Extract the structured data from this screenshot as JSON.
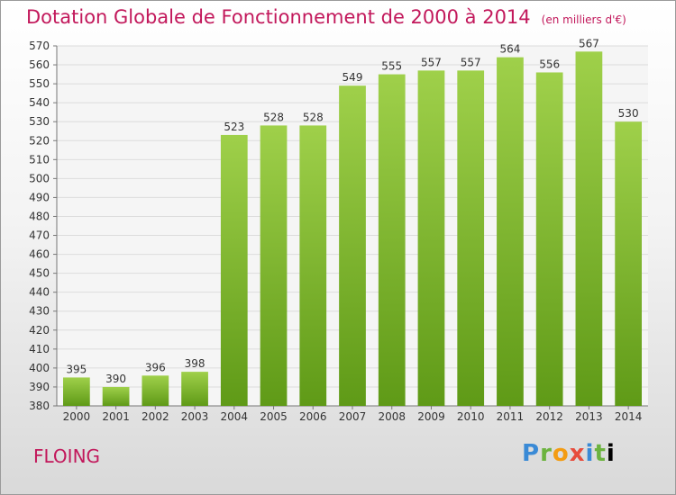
{
  "title": "Dotation Globale de Fonctionnement de 2000 à 2014",
  "unit_label": "(en milliers d'€)",
  "place_name": "FLOING",
  "brand": [
    "P",
    "r",
    "o",
    "x",
    "i",
    "t",
    "i"
  ],
  "colors": {
    "title": "#c2185b",
    "bar_light": "#9fd04a",
    "bar_dark": "#5f9a17",
    "grid": "#dcdcdc"
  },
  "chart_data": {
    "type": "bar",
    "title": "Dotation Globale de Fonctionnement de 2000 à 2014",
    "ylabel": "(en milliers d'€)",
    "categories": [
      "2000",
      "2001",
      "2002",
      "2003",
      "2004",
      "2005",
      "2006",
      "2007",
      "2008",
      "2009",
      "2010",
      "2011",
      "2012",
      "2013",
      "2014"
    ],
    "values": [
      395,
      390,
      396,
      398,
      523,
      528,
      528,
      549,
      555,
      557,
      557,
      564,
      556,
      567,
      530
    ],
    "ylim": [
      380,
      570
    ],
    "ytick_step": 10,
    "grid": true,
    "legend": "none"
  }
}
